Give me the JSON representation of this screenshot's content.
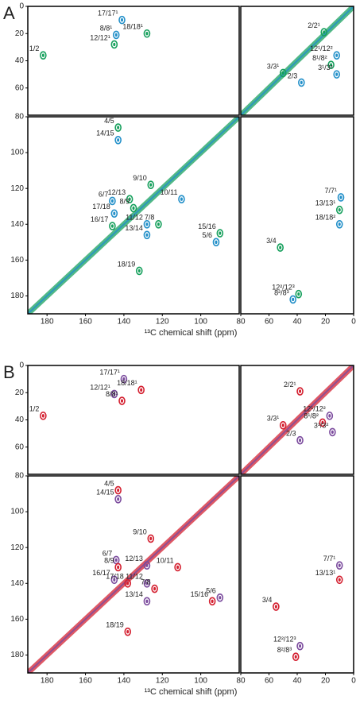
{
  "chart_data": [
    {
      "type": "contour",
      "panel": "A",
      "xlabel": "¹³C chemical shift (ppm)",
      "colors": [
        "#17a05d",
        "#2390c9"
      ],
      "quadrants": [
        {
          "xlim": [
            190,
            80
          ],
          "ylim": [
            0,
            80
          ],
          "yticks": [
            0,
            20,
            40,
            60
          ],
          "peaks": [
            {
              "label": "1/2",
              "x": 182,
              "y": 36
            },
            {
              "label": "8/8¹",
              "x": 144,
              "y": 21
            },
            {
              "label": "12/12¹",
              "x": 145,
              "y": 28
            },
            {
              "label": "17/17¹",
              "x": 141,
              "y": 10
            },
            {
              "label": "18/18¹",
              "x": 128,
              "y": 20
            }
          ]
        },
        {
          "xlim": [
            80,
            0
          ],
          "ylim": [
            0,
            80
          ],
          "peaks": [
            {
              "label": "2/2¹",
              "x": 21,
              "y": 19
            },
            {
              "label": "12¹/12²",
              "x": 12,
              "y": 36
            },
            {
              "label": "8¹/8²",
              "x": 16,
              "y": 43
            },
            {
              "label": "3¹/3²",
              "x": 12,
              "y": 50
            },
            {
              "label": "3/3¹",
              "x": 50,
              "y": 49
            },
            {
              "label": "2/3",
              "x": 37,
              "y": 56
            }
          ]
        },
        {
          "xlim": [
            190,
            80
          ],
          "ylim": [
            80,
            190
          ],
          "yticks": [
            80,
            100,
            120,
            140,
            160,
            180
          ],
          "xticks": [
            180,
            160,
            140,
            120,
            100
          ],
          "peaks": [
            {
              "label": "4/5",
              "x": 143,
              "y": 86
            },
            {
              "label": "14/15",
              "x": 143,
              "y": 93
            },
            {
              "label": "9/10",
              "x": 126,
              "y": 118
            },
            {
              "label": "10/11",
              "x": 110,
              "y": 126
            },
            {
              "label": "12/13",
              "x": 137,
              "y": 126
            },
            {
              "label": "6/7",
              "x": 146,
              "y": 127
            },
            {
              "label": "8/9",
              "x": 135,
              "y": 131
            },
            {
              "label": "17/18",
              "x": 145,
              "y": 134
            },
            {
              "label": "16/17",
              "x": 146,
              "y": 141
            },
            {
              "label": "11/12",
              "x": 128,
              "y": 140
            },
            {
              "label": "7/8",
              "x": 122,
              "y": 140
            },
            {
              "label": "13/14",
              "x": 128,
              "y": 146
            },
            {
              "label": "15/16",
              "x": 90,
              "y": 145
            },
            {
              "label": "5/6",
              "x": 92,
              "y": 150
            },
            {
              "label": "18/19",
              "x": 132,
              "y": 166
            }
          ]
        },
        {
          "xlim": [
            80,
            0
          ],
          "ylim": [
            80,
            190
          ],
          "xticks": [
            80,
            60,
            40,
            20,
            0
          ],
          "peaks": [
            {
              "label": "3/4",
              "x": 52,
              "y": 153
            },
            {
              "label": "7/7¹",
              "x": 9,
              "y": 125
            },
            {
              "label": "13/13¹",
              "x": 10,
              "y": 132
            },
            {
              "label": "18/18²",
              "x": 10,
              "y": 140
            },
            {
              "label": "12²/12³",
              "x": 39,
              "y": 179
            },
            {
              "label": "8²/8³",
              "x": 43,
              "y": 182
            }
          ]
        }
      ]
    },
    {
      "type": "contour",
      "panel": "B",
      "xlabel": "¹³C chemical shift (ppm)",
      "colors": [
        "#d42030",
        "#7c4c9e"
      ],
      "quadrants": [
        {
          "xlim": [
            190,
            80
          ],
          "ylim": [
            0,
            80
          ],
          "yticks": [
            0,
            20,
            40,
            60
          ],
          "peaks": [
            {
              "label": "1/2",
              "x": 182,
              "y": 37
            },
            {
              "label": "12/12¹",
              "x": 145,
              "y": 21
            },
            {
              "label": "8/8¹",
              "x": 141,
              "y": 26
            },
            {
              "label": "17/17¹",
              "x": 140,
              "y": 10
            },
            {
              "label": "18/18¹",
              "x": 131,
              "y": 18
            }
          ]
        },
        {
          "xlim": [
            80,
            0
          ],
          "ylim": [
            0,
            80
          ],
          "peaks": [
            {
              "label": "2/2¹",
              "x": 38,
              "y": 19
            },
            {
              "label": "12¹/12²",
              "x": 17,
              "y": 37
            },
            {
              "label": "8¹/8²",
              "x": 22,
              "y": 42
            },
            {
              "label": "3¹/3²",
              "x": 15,
              "y": 49
            },
            {
              "label": "3/3¹",
              "x": 50,
              "y": 44
            },
            {
              "label": "2/3",
              "x": 38,
              "y": 55
            }
          ]
        },
        {
          "xlim": [
            190,
            80
          ],
          "ylim": [
            80,
            190
          ],
          "yticks": [
            80,
            100,
            120,
            140,
            160,
            180
          ],
          "xticks": [
            180,
            160,
            140,
            120,
            100
          ],
          "peaks": [
            {
              "label": "4/5",
              "x": 143,
              "y": 88
            },
            {
              "label": "14/15",
              "x": 143,
              "y": 93
            },
            {
              "label": "9/10",
              "x": 126,
              "y": 115
            },
            {
              "label": "6/7",
              "x": 144,
              "y": 127
            },
            {
              "label": "8/9",
              "x": 143,
              "y": 131
            },
            {
              "label": "12/13",
              "x": 128,
              "y": 130
            },
            {
              "label": "10/11",
              "x": 112,
              "y": 131
            },
            {
              "label": "16/17",
              "x": 145,
              "y": 138
            },
            {
              "label": "17/18",
              "x": 138,
              "y": 140
            },
            {
              "label": "11/12",
              "x": 128,
              "y": 140
            },
            {
              "label": "7/8",
              "x": 124,
              "y": 143
            },
            {
              "label": "13/14",
              "x": 128,
              "y": 150
            },
            {
              "label": "15/16",
              "x": 94,
              "y": 150
            },
            {
              "label": "5/6",
              "x": 90,
              "y": 148
            },
            {
              "label": "18/19",
              "x": 138,
              "y": 167
            }
          ]
        },
        {
          "xlim": [
            80,
            0
          ],
          "ylim": [
            80,
            190
          ],
          "xticks": [
            80,
            60,
            40,
            20,
            0
          ],
          "peaks": [
            {
              "label": "3/4",
              "x": 55,
              "y": 153
            },
            {
              "label": "7/7¹",
              "x": 10,
              "y": 130
            },
            {
              "label": "13/13¹",
              "x": 10,
              "y": 138
            },
            {
              "label": "12²/12³",
              "x": 38,
              "y": 175
            },
            {
              "label": "8²/8³",
              "x": 41,
              "y": 181
            }
          ]
        }
      ]
    }
  ]
}
